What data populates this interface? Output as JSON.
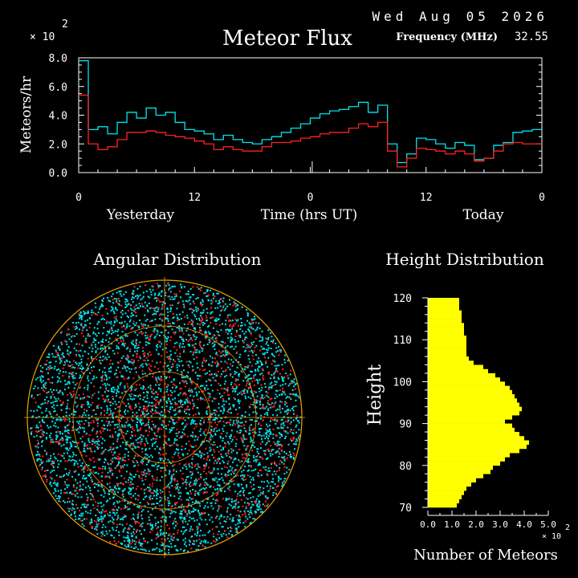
{
  "header": {
    "date": "Wed Aug 05 2026",
    "title": "Meteor Flux",
    "frequency_label": "Frequency (MHz)",
    "frequency_value": "32.55"
  },
  "colors": {
    "background": "#000000",
    "axes": "#ffffff",
    "series_cyan": "#00e5ee",
    "series_red": "#ff2020",
    "histogram": "#ffff00",
    "polar_grid": "#e8a000"
  },
  "chart_data": [
    {
      "type": "line",
      "title": "Meteor Flux",
      "ylabel": "Meteors/hr",
      "y_multiplier": "× 10",
      "y_multiplier_exp": "2",
      "ylim": [
        0,
        8
      ],
      "yticks": [
        "0.0",
        "2.0",
        "4.0",
        "6.0",
        "8.0"
      ],
      "xlabel": "Time (hrs UT)",
      "xticks": [
        "0",
        "12",
        "0",
        "12",
        "0"
      ],
      "xlim": [
        0,
        48
      ],
      "day_labels": [
        "Yesterday",
        "Today"
      ],
      "x": [
        0,
        1,
        2,
        3,
        4,
        5,
        6,
        7,
        8,
        9,
        10,
        11,
        12,
        13,
        14,
        15,
        16,
        17,
        18,
        19,
        20,
        21,
        22,
        23,
        24,
        25,
        26,
        27,
        28,
        29,
        30,
        31,
        32,
        33,
        34,
        35,
        36,
        37,
        38,
        39,
        40,
        41,
        42,
        43,
        44,
        45,
        46,
        47
      ],
      "series": [
        {
          "color": "#00e5ee",
          "values": [
            7.8,
            3.0,
            3.2,
            2.7,
            3.5,
            4.2,
            3.8,
            4.5,
            4.0,
            4.2,
            3.5,
            3.0,
            2.9,
            2.7,
            2.3,
            2.6,
            2.3,
            2.1,
            2.0,
            2.3,
            2.5,
            2.8,
            3.1,
            3.4,
            3.8,
            4.1,
            4.3,
            4.4,
            4.6,
            4.9,
            4.2,
            4.7,
            2.0,
            0.7,
            1.3,
            2.4,
            2.3,
            2.0,
            1.7,
            2.1,
            1.9,
            0.9,
            1.0,
            1.9,
            2.1,
            2.8,
            2.9,
            3.0
          ]
        },
        {
          "color": "#ff2020",
          "values": [
            5.4,
            2.0,
            1.6,
            1.8,
            2.3,
            2.8,
            2.8,
            2.9,
            2.8,
            2.6,
            2.5,
            2.4,
            2.2,
            2.0,
            1.6,
            1.8,
            1.6,
            1.5,
            1.5,
            1.8,
            2.1,
            2.1,
            2.2,
            2.4,
            2.5,
            2.7,
            2.8,
            2.8,
            3.1,
            3.4,
            3.2,
            3.5,
            1.5,
            0.4,
            1.0,
            1.7,
            1.6,
            1.5,
            1.3,
            1.5,
            1.3,
            0.8,
            1.0,
            1.5,
            2.0,
            2.1,
            2.0,
            2.0
          ]
        }
      ]
    },
    {
      "type": "scatter",
      "title": "Angular Distribution",
      "projection": "polar all-sky",
      "point_colors": [
        "#00e5ee",
        "#ff2020"
      ]
    },
    {
      "type": "bar",
      "orientation": "horizontal",
      "title": "Height Distribution",
      "ylabel": "Height",
      "xlabel": "Number of Meteors",
      "x_multiplier": "× 10",
      "x_multiplier_exp": "2",
      "yticks": [
        "70",
        "80",
        "90",
        "100",
        "110",
        "120"
      ],
      "ylim": [
        70,
        120
      ],
      "xticks": [
        "0.0",
        "1.0",
        "2.0",
        "3.0",
        "4.0",
        "5.0"
      ],
      "xlim": [
        0,
        5
      ],
      "heights": [
        120,
        119,
        118,
        117,
        116,
        115,
        114,
        113,
        112,
        111,
        110,
        109,
        108,
        107,
        106,
        105,
        104,
        103,
        102,
        101,
        100,
        99,
        98,
        97,
        96,
        95,
        94,
        93,
        92,
        91,
        90,
        89,
        88,
        87,
        86,
        85,
        84,
        83,
        82,
        81,
        80,
        79,
        78,
        77,
        76,
        75,
        74,
        73,
        72,
        71
      ],
      "values": [
        1.3,
        1.3,
        1.3,
        1.4,
        1.4,
        1.4,
        1.5,
        1.5,
        1.5,
        1.6,
        1.6,
        1.6,
        1.6,
        1.6,
        1.7,
        1.9,
        2.3,
        2.5,
        2.8,
        3.0,
        3.2,
        3.4,
        3.5,
        3.6,
        3.7,
        3.8,
        3.9,
        3.8,
        3.5,
        3.2,
        3.5,
        3.6,
        3.8,
        4.0,
        4.2,
        4.1,
        3.8,
        3.4,
        3.2,
        3.0,
        2.7,
        2.6,
        2.3,
        2.0,
        1.8,
        1.6,
        1.5,
        1.4,
        1.3,
        1.2
      ]
    }
  ]
}
